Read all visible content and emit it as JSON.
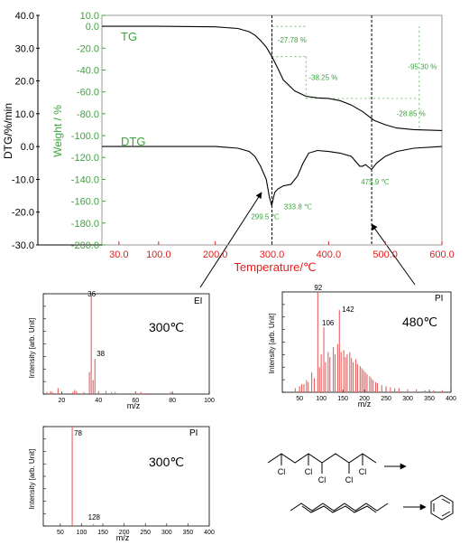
{
  "colors": {
    "black": "#000000",
    "tg_green": "#3aa53a",
    "temp_red": "#e02020",
    "grid": "#9a9a9a",
    "ms_red": "#e86060"
  },
  "chart_data": [
    {
      "type": "line",
      "id": "tga",
      "xlabel": "Temperature/℃",
      "x_ticks": [
        "30.0",
        "100.0",
        "200.0",
        "300.0",
        "400.0",
        "500.0",
        "600.0"
      ],
      "x_tick_values": [
        30,
        100,
        200,
        300,
        400,
        500,
        600
      ],
      "xlim": [
        0,
        600
      ],
      "y_left": {
        "label": "DTG/%/min",
        "ticks": [
          "40.0",
          "30.0",
          "20.0",
          "10.0",
          "0.0",
          "-10.0",
          "-20.0",
          "-30.0"
        ],
        "tick_values": [
          40,
          30,
          20,
          10,
          0,
          -10,
          -20,
          -30
        ],
        "ylim": [
          -30,
          40
        ]
      },
      "y_right": {
        "label": "Weight / %",
        "ticks": [
          "10.0",
          "0.0",
          "-20.0",
          "-40.0",
          "-60.0",
          "-80.0",
          "-100.0",
          "-120.0",
          "-140.0",
          "-160.0",
          "-180.0",
          "-200.0"
        ],
        "tick_values": [
          10,
          0,
          -20,
          -40,
          -60,
          -80,
          -100,
          -120,
          -140,
          -160,
          -180,
          -200
        ],
        "ylim": [
          -200,
          10
        ]
      },
      "series": [
        {
          "name": "TG",
          "axis": "right",
          "x": [
            0,
            100,
            200,
            240,
            260,
            270,
            280,
            290,
            300,
            310,
            320,
            340,
            360,
            380,
            400,
            420,
            440,
            460,
            480,
            500,
            520,
            550,
            600
          ],
          "y": [
            0,
            0,
            -0.5,
            -2,
            -5,
            -8,
            -13,
            -19,
            -27.8,
            -38,
            -49,
            -59,
            -64,
            -65.5,
            -66,
            -68,
            -72,
            -78,
            -86,
            -90,
            -93,
            -94.5,
            -95.3
          ]
        },
        {
          "name": "DTG",
          "axis": "left",
          "x": [
            0,
            100,
            200,
            240,
            260,
            270,
            280,
            290,
            295,
            299.5,
            305,
            310,
            320,
            333.8,
            345,
            355,
            365,
            380,
            400,
            420,
            440,
            455,
            460,
            465,
            475.9,
            485,
            500,
            520,
            550,
            600
          ],
          "y": [
            0,
            0,
            0,
            -0.5,
            -1.5,
            -3,
            -6,
            -10,
            -15,
            -18,
            -14,
            -13,
            -12,
            -11.5,
            -9,
            -5,
            -2,
            -1.2,
            -1.5,
            -2,
            -3,
            -6,
            -6,
            -5.5,
            -7,
            -5,
            -3,
            -1.5,
            -0.5,
            0
          ]
        }
      ],
      "annotations": [
        {
          "text": "-27.78 %"
        },
        {
          "text": "-38.25 %"
        },
        {
          "text": "-95.30 %"
        },
        {
          "text": "-28.85 %"
        },
        {
          "text": "299.5 ℃"
        },
        {
          "text": "333.8 ℃"
        },
        {
          "text": "475.9 ℃"
        }
      ],
      "dashed_lines_x": [
        300,
        476
      ]
    },
    {
      "type": "bar",
      "id": "ms_ei_300",
      "mode_label": "EI",
      "temp_label": "300℃",
      "xlabel": "m/z",
      "ylabel": "Intensity [arb. Unit]",
      "x_ticks": [
        "20",
        "40",
        "60",
        "80",
        "100"
      ],
      "x_tick_values": [
        20,
        40,
        60,
        80,
        100
      ],
      "xlim": [
        10,
        100
      ],
      "peaks_mz": [
        12,
        14,
        15,
        18,
        26,
        27,
        28,
        32,
        35,
        36,
        37,
        38,
        40,
        44,
        47,
        49,
        60,
        63,
        66,
        79,
        81
      ],
      "peaks_rel": [
        2,
        3,
        2,
        6,
        2,
        4,
        3,
        2,
        22,
        100,
        14,
        35,
        3,
        3,
        2,
        2,
        1,
        2,
        1,
        2,
        1
      ],
      "peak_labels": [
        {
          "mz": 36,
          "text": "36"
        },
        {
          "mz": 38,
          "text": "38"
        }
      ]
    },
    {
      "type": "bar",
      "id": "ms_pi_480",
      "mode_label": "PI",
      "temp_label": "480℃",
      "xlabel": "m/z",
      "ylabel": "Intensity [arb. Unit]",
      "x_ticks": [
        "50",
        "100",
        "150",
        "200",
        "250",
        "300",
        "350",
        "400"
      ],
      "x_tick_values": [
        50,
        100,
        150,
        200,
        250,
        300,
        350,
        400
      ],
      "xlim": [
        10,
        400
      ],
      "peaks_mz": [
        40,
        50,
        55,
        60,
        66,
        70,
        78,
        84,
        92,
        96,
        100,
        106,
        110,
        116,
        120,
        128,
        132,
        138,
        142,
        146,
        152,
        156,
        160,
        166,
        170,
        174,
        180,
        184,
        190,
        194,
        198,
        202,
        206,
        212,
        216,
        220,
        226,
        230,
        240,
        250,
        260,
        270,
        280,
        300,
        320,
        340,
        360,
        380
      ],
      "peaks_rel": [
        4,
        6,
        8,
        8,
        12,
        10,
        20,
        14,
        100,
        25,
        38,
        65,
        30,
        40,
        35,
        45,
        38,
        48,
        82,
        40,
        42,
        35,
        38,
        40,
        34,
        30,
        33,
        28,
        26,
        24,
        22,
        20,
        18,
        16,
        14,
        12,
        10,
        9,
        7,
        6,
        5,
        4,
        4,
        3,
        3,
        2,
        2,
        2
      ],
      "peak_labels": [
        {
          "mz": 92,
          "text": "92"
        },
        {
          "mz": 106,
          "text": "106"
        },
        {
          "mz": 142,
          "text": "142"
        }
      ]
    },
    {
      "type": "bar",
      "id": "ms_pi_300",
      "mode_label": "PI",
      "temp_label": "300℃",
      "xlabel": "m/z",
      "ylabel": "Intensity [arb. Unit]",
      "x_ticks": [
        "50",
        "100",
        "150",
        "200",
        "250",
        "300",
        "350",
        "400"
      ],
      "x_tick_values": [
        50,
        100,
        150,
        200,
        250,
        300,
        350,
        400
      ],
      "xlim": [
        10,
        400
      ],
      "peaks_mz": [
        78,
        128
      ],
      "peaks_rel": [
        100,
        2
      ],
      "peak_labels": [
        {
          "mz": 78,
          "text": "78"
        },
        {
          "mz": 128,
          "text": "128"
        }
      ]
    }
  ],
  "structure": {
    "cl_labels": [
      "Cl",
      "Cl",
      "Cl",
      "Cl",
      "Cl"
    ]
  }
}
